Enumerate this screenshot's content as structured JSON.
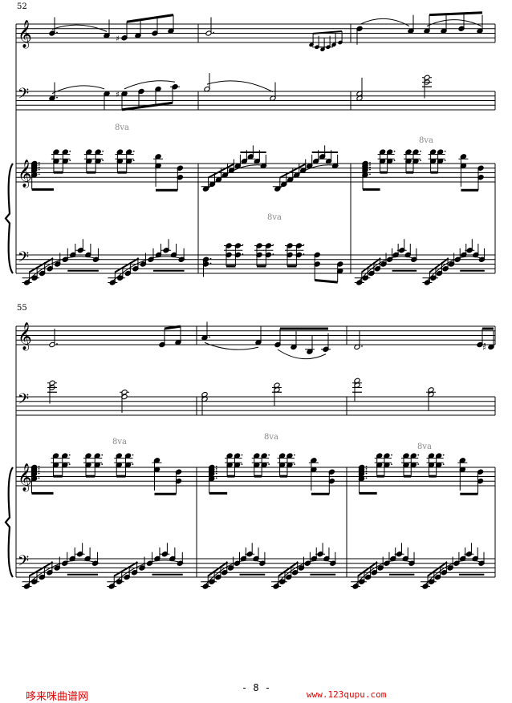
{
  "systems": [
    {
      "measure_number": "52",
      "ottava_marks": [
        "8va",
        "8va",
        "8va"
      ]
    },
    {
      "measure_number": "55",
      "ottava_marks": [
        "8va",
        "8va",
        "8va"
      ]
    }
  ],
  "page_number": "- 8 -",
  "footer": {
    "site_name": "哆来咪曲谱网",
    "site_url": "www.123qupu.com"
  },
  "colors": {
    "ink": "#000000",
    "footer": "#e00000",
    "ottava": "#888888"
  }
}
